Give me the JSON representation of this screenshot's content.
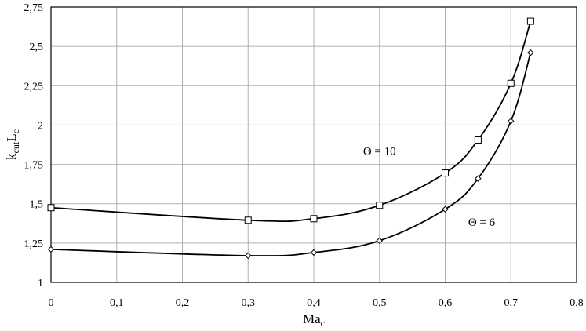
{
  "chart_data": {
    "type": "line",
    "xlabel": "Ma",
    "xlabel_sub": "c",
    "ylabel_parts": {
      "k": "k",
      "k_sub": "cut",
      "L": "L",
      "L_sub": "c"
    },
    "xlim": [
      0,
      0.8
    ],
    "ylim": [
      1,
      2.75
    ],
    "x_ticks": [
      0,
      0.1,
      0.2,
      0.3,
      0.4,
      0.5,
      0.6,
      0.7,
      0.8
    ],
    "x_tick_labels": [
      "0",
      "0,1",
      "0,2",
      "0,3",
      "0,4",
      "0,5",
      "0,6",
      "0,7",
      "0,8"
    ],
    "y_ticks": [
      1,
      1.25,
      1.5,
      1.75,
      2,
      2.25,
      2.5,
      2.75
    ],
    "y_tick_labels": [
      "1",
      "1,25",
      "1,5",
      "1,75",
      "2",
      "2,25",
      "2,5",
      "2,75"
    ],
    "grid": true,
    "series": [
      {
        "name": "Θ = 10",
        "marker": "square",
        "x": [
          0,
          0.3,
          0.4,
          0.5,
          0.6,
          0.65,
          0.7,
          0.73
        ],
        "y": [
          1.475,
          1.395,
          1.405,
          1.49,
          1.695,
          1.905,
          2.265,
          2.66
        ]
      },
      {
        "name": "Θ = 6",
        "marker": "diamond",
        "x": [
          0,
          0.3,
          0.4,
          0.5,
          0.6,
          0.65,
          0.7,
          0.73
        ],
        "y": [
          1.21,
          1.17,
          1.19,
          1.265,
          1.465,
          1.66,
          2.025,
          2.46
        ]
      }
    ],
    "annotations": [
      {
        "text": "Θ = 10",
        "x": 0.475,
        "y": 1.81
      },
      {
        "text": "Θ = 6",
        "x": 0.635,
        "y": 1.36
      }
    ]
  }
}
